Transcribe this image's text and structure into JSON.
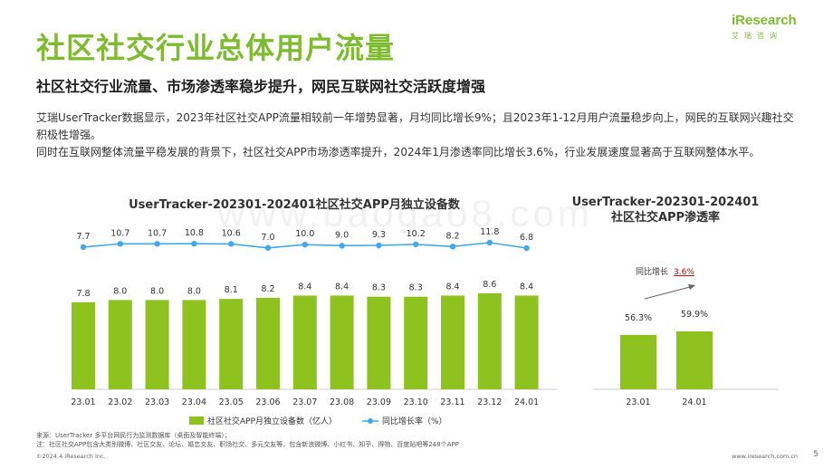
{
  "header": {
    "title": "社区社交行业总体用户流量",
    "subtitle": "社区社交行业流量、市场渗透率稳步提升，网民互联网社交活跃度增强",
    "body": [
      "艾瑞UserTracker数据显示，2023年社区社交APP流量相较前一年增势显著，月均同比增长9%；且2023年1-12月用户流量稳步向上，网民的互联网兴趣社交积极性增强。",
      "同时在互联网整体流量平稳发展的背景下，社区社交APP市场渗透率提升，2024年1月渗透率同比增长3.6%，行业发展速度显著高于互联网整体水平。"
    ]
  },
  "logo": {
    "brand": "iResearch",
    "brand_cn": "艾瑞咨询"
  },
  "watermark": "www.baogao8.com",
  "colors": {
    "green": "#8dc21f",
    "blue": "#41a8f0",
    "title_green": "#7dbb2f",
    "red": "#c00000"
  },
  "chart_data": [
    {
      "type": "bar",
      "title": "UserTracker-202301-202401社区社交APP月独立设备数",
      "categories": [
        "23.01",
        "23.02",
        "23.03",
        "23.04",
        "23.05",
        "23.06",
        "23.07",
        "23.08",
        "23.09",
        "23.10",
        "23.11",
        "23.12",
        "24.01"
      ],
      "series": [
        {
          "name": "社区社交APP月独立设备数（亿人）",
          "type": "bar",
          "values": [
            7.8,
            8.0,
            8.0,
            8.0,
            8.1,
            8.2,
            8.4,
            8.4,
            8.3,
            8.3,
            8.4,
            8.6,
            8.4
          ]
        },
        {
          "name": "同比增长率（%）",
          "type": "line",
          "values": [
            7.7,
            10.7,
            10.7,
            10.8,
            10.6,
            7.0,
            10.0,
            9.0,
            9.3,
            10.2,
            8.2,
            11.8,
            6.8
          ]
        }
      ],
      "legend": "bottom"
    },
    {
      "type": "bar",
      "title": "UserTracker-202301-202401社区社交APP渗透率",
      "categories": [
        "23.01",
        "24.01"
      ],
      "values": [
        56.3,
        59.9
      ],
      "value_labels": [
        "56.3%",
        "59.9%"
      ],
      "annotation": {
        "label": "同比增长",
        "value": "3.6%"
      }
    }
  ],
  "footer": {
    "source": "来源：UserTracker 多平台网民行为监测数据库（桌面及智能终端）；",
    "note": "注：社区社交APP包含大类别微博、社区交友、论坛、婚恋交友、职场社交、多元交友等，包含新浪微博、小红书、知乎、得物、百度贴吧等248个APP",
    "copyright": "©2024.4 iResearch Inc.",
    "url": "www.iresearch.com.cn",
    "page": "5"
  }
}
